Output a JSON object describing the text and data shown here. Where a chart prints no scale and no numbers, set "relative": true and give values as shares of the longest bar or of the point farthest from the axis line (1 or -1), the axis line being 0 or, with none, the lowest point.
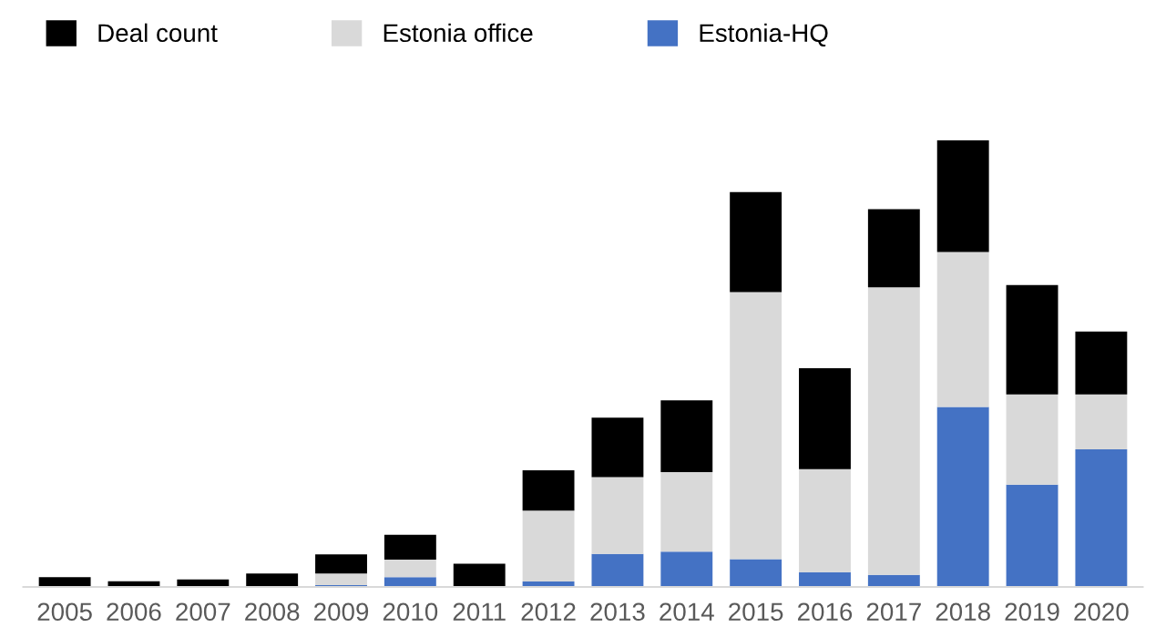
{
  "chart_data": {
    "type": "bar",
    "stacked": true,
    "relative": true,
    "legend": "top left",
    "categories": [
      "2005",
      "2006",
      "2007",
      "2008",
      "2009",
      "2010",
      "2011",
      "2012",
      "2013",
      "2014",
      "2015",
      "2016",
      "2017",
      "2018",
      "2019",
      "2020"
    ],
    "series": [
      {
        "name": "Estonia-HQ",
        "color": "#4472c4",
        "values": [
          0,
          0,
          0,
          0,
          0.004,
          0.022,
          0,
          0.012,
          0.074,
          0.079,
          0.062,
          0.033,
          0.027,
          0.403,
          0.229,
          0.308
        ]
      },
      {
        "name": "Estonia office",
        "color": "#d9d9d9",
        "values": [
          0,
          0,
          0,
          0,
          0.026,
          0.039,
          0,
          0.159,
          0.172,
          0.178,
          0.598,
          0.231,
          0.644,
          0.347,
          0.202,
          0.123
        ]
      },
      {
        "name": "Deal count",
        "color": "#000000",
        "values": [
          0.022,
          0.013,
          0.017,
          0.03,
          0.043,
          0.056,
          0.052,
          0.09,
          0.133,
          0.161,
          0.224,
          0.226,
          0.175,
          0.25,
          0.245,
          0.141
        ]
      }
    ]
  }
}
